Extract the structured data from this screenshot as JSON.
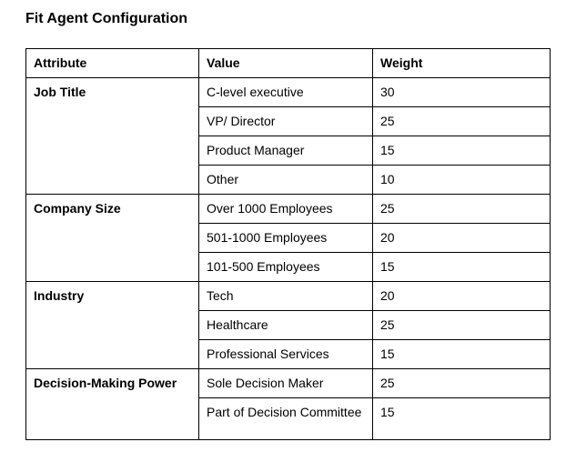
{
  "page": {
    "title": "Fit Agent Configuration"
  },
  "colors": {
    "background": "#ffffff",
    "text": "#000000",
    "table_border": "#000000"
  },
  "table": {
    "headers": {
      "attribute": "Attribute",
      "value": "Value",
      "weight": "Weight"
    },
    "groups": [
      {
        "attribute": "Job Title",
        "rows": [
          {
            "value": "C-level executive",
            "weight": "30"
          },
          {
            "value": "VP/ Director",
            "weight": "25"
          },
          {
            "value": "Product Manager",
            "weight": "15"
          },
          {
            "value": "Other",
            "weight": "10"
          }
        ]
      },
      {
        "attribute": "Company Size",
        "rows": [
          {
            "value": "Over 1000 Employees",
            "weight": "25"
          },
          {
            "value": "501-1000 Employees",
            "weight": "20"
          },
          {
            "value": "101-500 Employees",
            "weight": "15"
          }
        ]
      },
      {
        "attribute": "Industry",
        "rows": [
          {
            "value": "Tech",
            "weight": "20"
          },
          {
            "value": "Healthcare",
            "weight": "25"
          },
          {
            "value": "Professional Services",
            "weight": "15"
          }
        ]
      },
      {
        "attribute": "Decision-Making Power",
        "rows": [
          {
            "value": "Sole Decision Maker",
            "weight": "25"
          },
          {
            "value": "Part of Decision Committee",
            "weight": "15"
          }
        ]
      }
    ]
  }
}
